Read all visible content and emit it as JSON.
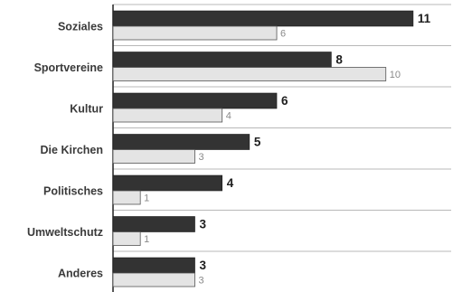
{
  "chart_data": {
    "type": "bar",
    "orientation": "horizontal",
    "categories": [
      "Soziales",
      "Sportvereine",
      "Kultur",
      "Die Kirchen",
      "Politisches",
      "Umweltschutz",
      "Anderes"
    ],
    "series": [
      {
        "values": [
          11,
          8,
          6,
          5,
          4,
          3,
          3
        ],
        "color": "#333333"
      },
      {
        "values": [
          6,
          10,
          4,
          3,
          1,
          1,
          3
        ],
        "color": "#e4e4e4"
      }
    ],
    "xlim": [
      0,
      11.5
    ],
    "grid": false,
    "legend": "none",
    "title": "",
    "xlabel": "",
    "ylabel": ""
  }
}
